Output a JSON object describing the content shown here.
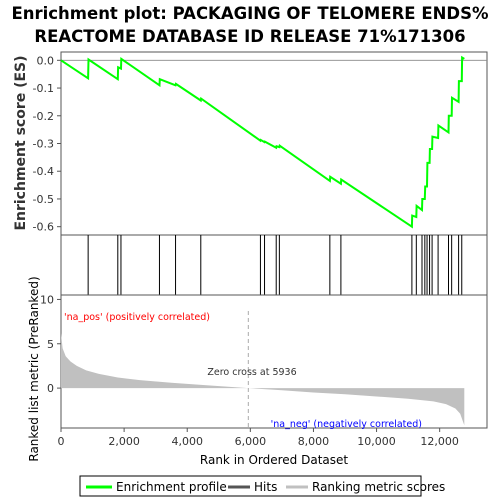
{
  "chart_data": {
    "title_line1": "Enrichment plot: PACKAGING OF TELOMERE ENDS%",
    "title_line2": "REACTOME DATABASE ID RELEASE 71%171306",
    "es_panel": {
      "type": "line",
      "ylabel": "Enrichment score (ES)",
      "ylim": [
        -0.63,
        0.03
      ],
      "yticks": [
        0.0,
        -0.1,
        -0.2,
        -0.3,
        -0.4,
        -0.5,
        -0.6
      ],
      "ytick_labels": [
        "0.0",
        "-0.1",
        "-0.2",
        "-0.3",
        "-0.4",
        "-0.5",
        "-0.6"
      ],
      "series": [
        {
          "name": "Enrichment profile",
          "color": "#00ff00",
          "x": [
            0,
            860,
            870,
            1800,
            1810,
            1900,
            1910,
            3120,
            3130,
            3630,
            3640,
            4430,
            4440,
            6320,
            6330,
            6450,
            6460,
            6820,
            6830,
            6920,
            6930,
            8520,
            8530,
            8870,
            8880,
            11120,
            11130,
            11260,
            11270,
            11440,
            11450,
            11530,
            11540,
            11600,
            11610,
            11680,
            11690,
            11760,
            11770,
            11950,
            11960,
            12280,
            12290,
            12380,
            12390,
            12600,
            12610,
            12700,
            12710,
            12780
          ],
          "y": [
            0.0,
            -0.065,
            0.003,
            -0.068,
            -0.025,
            -0.03,
            0.005,
            -0.09,
            -0.068,
            -0.09,
            -0.085,
            -0.145,
            -0.138,
            -0.29,
            -0.287,
            -0.295,
            -0.293,
            -0.315,
            -0.31,
            -0.313,
            -0.308,
            -0.435,
            -0.42,
            -0.445,
            -0.43,
            -0.6,
            -0.56,
            -0.565,
            -0.525,
            -0.54,
            -0.5,
            -0.5,
            -0.455,
            -0.455,
            -0.37,
            -0.37,
            -0.32,
            -0.32,
            -0.275,
            -0.28,
            -0.235,
            -0.26,
            -0.2,
            -0.2,
            -0.135,
            -0.15,
            -0.075,
            -0.075,
            0.01,
            0.005
          ]
        }
      ]
    },
    "hits": [
      860,
      1800,
      1900,
      3120,
      3630,
      4430,
      6320,
      6450,
      6820,
      6920,
      8520,
      8870,
      11120,
      11260,
      11440,
      11530,
      11600,
      11680,
      11760,
      11950,
      12280,
      12380,
      12600,
      12700
    ],
    "metric_panel": {
      "type": "area",
      "ylabel": "Ranked list metric (PreRanked)",
      "ylim": [
        -4.5,
        10.5
      ],
      "yticks": [
        10,
        5,
        0
      ],
      "ytick_labels": [
        "10",
        "5",
        "0"
      ],
      "x": [
        0,
        50,
        150,
        300,
        500,
        800,
        1200,
        1800,
        2500,
        3500,
        4500,
        5936,
        7000,
        8000,
        9000,
        10000,
        11000,
        11800,
        12200,
        12500,
        12650,
        12720,
        12780
      ],
      "y": [
        6.2,
        4.5,
        3.6,
        3.0,
        2.5,
        2.0,
        1.6,
        1.2,
        0.9,
        0.6,
        0.35,
        0.0,
        -0.25,
        -0.5,
        -0.7,
        -0.95,
        -1.2,
        -1.5,
        -1.8,
        -2.3,
        -2.9,
        -3.6,
        -4.2
      ],
      "fill_color": "#c0c0c0"
    },
    "xlabel": "Rank in Ordered Dataset",
    "xlim": [
      0,
      13500
    ],
    "xticks": [
      0,
      2000,
      4000,
      6000,
      8000,
      10000,
      12000
    ],
    "xtick_labels": [
      "0",
      "2,000",
      "4,000",
      "6,000",
      "8,000",
      "10,000",
      "12,000"
    ],
    "n_genes": 12780,
    "zero_cross": 5936,
    "zero_cross_label": "Zero cross at 5936",
    "pos_label": "'na_pos' (positively correlated)",
    "neg_label": "'na_neg' (negatively correlated)",
    "pos_color": "#ff0000",
    "neg_color": "#0000ff",
    "legend": [
      {
        "label": "Enrichment profile",
        "color": "#00ff00"
      },
      {
        "label": "Hits",
        "color": "#000000"
      },
      {
        "label": "Ranking metric scores",
        "color": "#c0c0c0"
      }
    ]
  }
}
